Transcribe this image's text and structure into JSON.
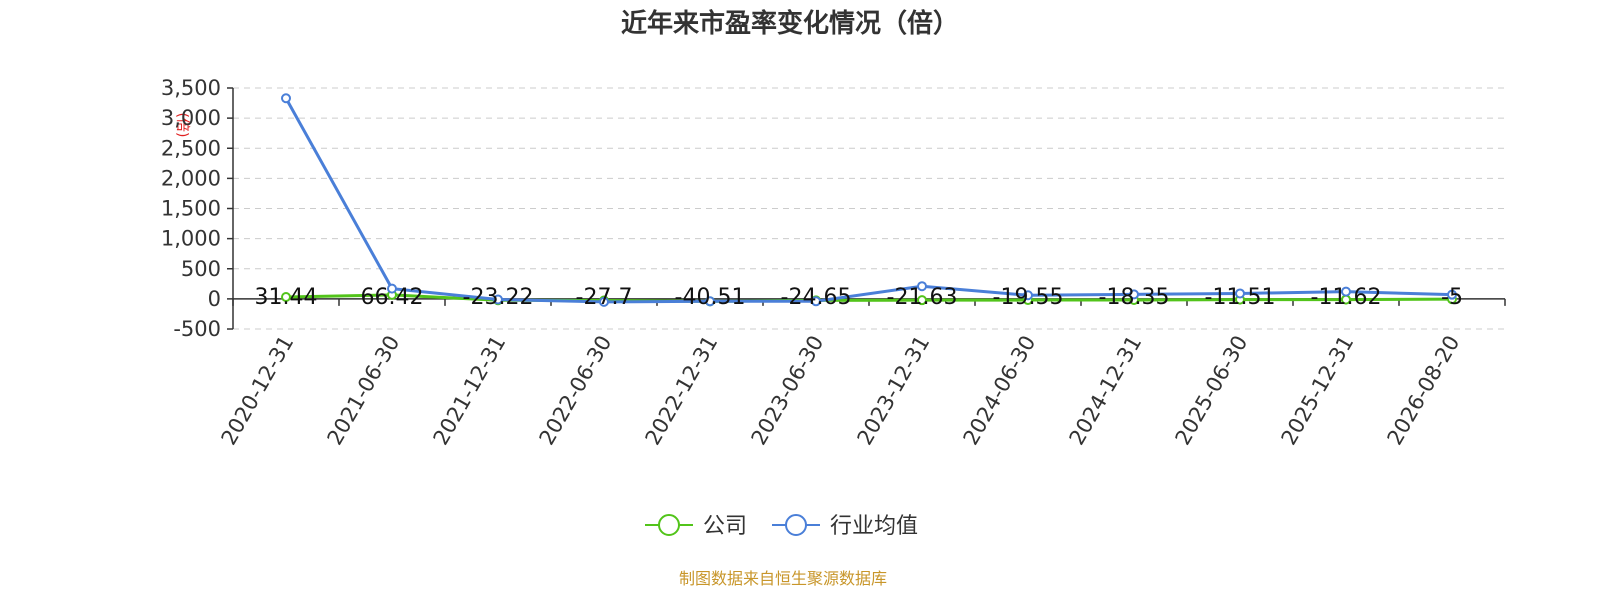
{
  "chart_data": {
    "type": "line",
    "title": "近年来市盈率变化情况（倍）",
    "ylabel": "(倍)",
    "categories": [
      "2020-12-31",
      "2021-06-30",
      "2021-12-31",
      "2022-06-30",
      "2022-12-31",
      "2023-06-30",
      "2023-12-31",
      "2024-06-30",
      "2024-12-31",
      "2025-06-30",
      "2025-12-31",
      "2026-08-20"
    ],
    "yticks": [
      "-500",
      "0",
      "500",
      "1,000",
      "1,500",
      "2,000",
      "2,500",
      "3,000",
      "3,500"
    ],
    "ylim": [
      -500,
      3500
    ],
    "grid": true,
    "legend_position": "bottom",
    "series": [
      {
        "name": "公司",
        "color": "#52c41a",
        "values": [
          31.44,
          66.42,
          -23.22,
          -27.7,
          -40.51,
          -24.65,
          -21.63,
          -19.55,
          -18.35,
          -11.51,
          -11.62,
          -5
        ],
        "labels": [
          "31.44",
          "66.42",
          "-23.22",
          "-27.7",
          "-40.51",
          "-24.65",
          "-21.63",
          "-19.55",
          "-18.35",
          "-11.51",
          "-11.62",
          "-5"
        ]
      },
      {
        "name": "行业均值",
        "color": "#4a7fd8",
        "values": [
          3330,
          170,
          -10,
          -50,
          -40,
          -40,
          210,
          60,
          75,
          90,
          120,
          70
        ]
      }
    ]
  },
  "source_text": "制图数据来自恒生聚源数据库"
}
